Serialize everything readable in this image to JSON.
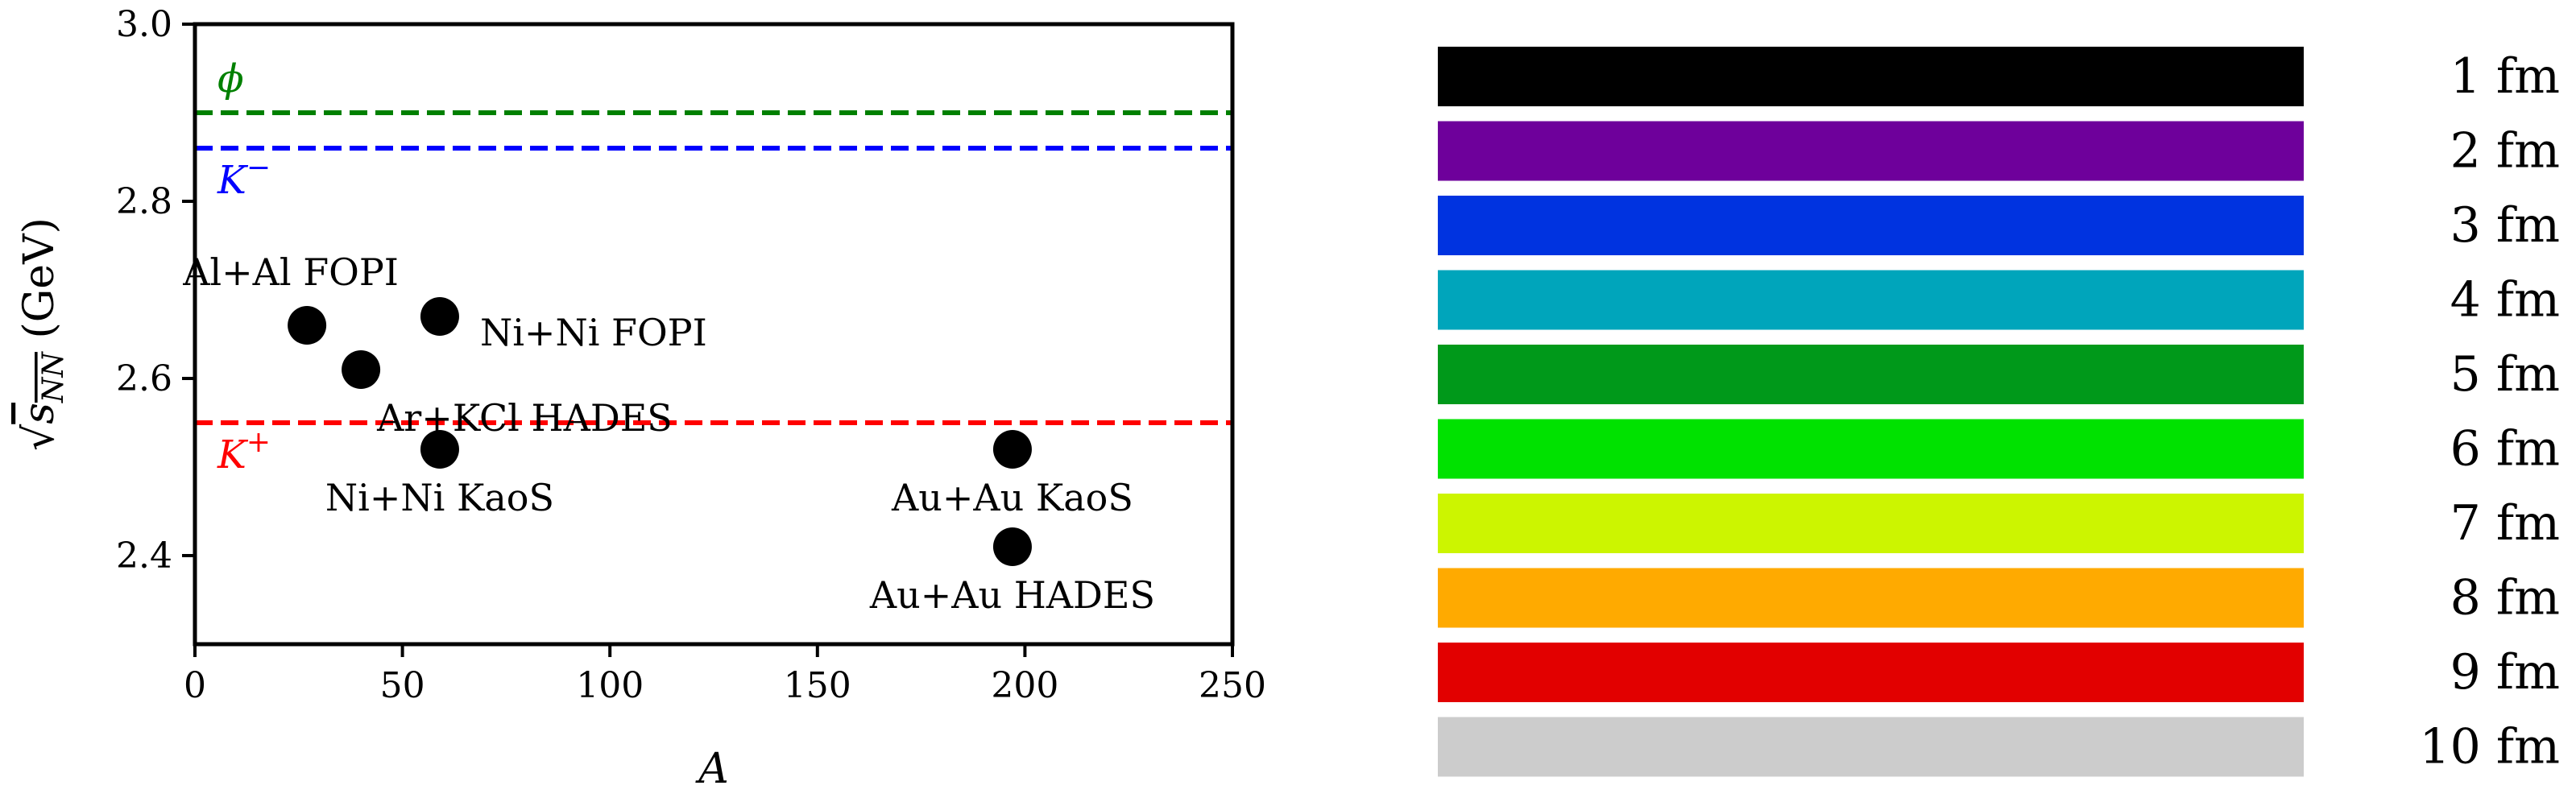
{
  "chart_data": {
    "type": "scatter",
    "xlabel": "A",
    "ylabel": {
      "base": "s",
      "sub": "NN",
      "unit": "(GeV)"
    },
    "xlim": [
      0,
      250
    ],
    "ylim": [
      2.3,
      3.0
    ],
    "xticks": [
      0,
      50,
      100,
      150,
      200,
      250
    ],
    "yticks": [
      2.4,
      2.6,
      2.8,
      3.0
    ],
    "xtick_labels": [
      "0",
      "50",
      "100",
      "150",
      "200",
      "250"
    ],
    "ytick_labels": [
      "2.4",
      "2.6",
      "2.8",
      "3.0"
    ],
    "grid": false,
    "points": [
      {
        "label": "Al+Al FOPI",
        "x": 27,
        "y": 2.66,
        "label_pos": "above-left"
      },
      {
        "label": "Ni+Ni FOPI",
        "x": 59,
        "y": 2.67,
        "label_pos": "right"
      },
      {
        "label": "Ar+KCl HADES",
        "x": 40,
        "y": 2.61,
        "label_pos": "below-right"
      },
      {
        "label": "Ni+Ni KaoS",
        "x": 59,
        "y": 2.52,
        "label_pos": "below"
      },
      {
        "label": "Au+Au KaoS",
        "x": 197,
        "y": 2.52,
        "label_pos": "below"
      },
      {
        "label": "Au+Au HADES",
        "x": 197,
        "y": 2.41,
        "label_pos": "below"
      }
    ],
    "reference_lines": [
      {
        "label": "ϕ",
        "y": 2.9,
        "color": "#008000",
        "label_pos": "above"
      },
      {
        "label": "K",
        "superscript": "−",
        "y": 2.86,
        "color": "#0000ff",
        "label_pos": "below"
      },
      {
        "label": "K",
        "superscript": "+",
        "y": 2.55,
        "color": "#ff0000",
        "label_pos": "below"
      }
    ]
  },
  "legend": {
    "items": [
      {
        "label": "1 fm",
        "color": "#000000"
      },
      {
        "label": "2 fm",
        "color": "#6e009b"
      },
      {
        "label": "3 fm",
        "color": "#0033e0"
      },
      {
        "label": "4 fm",
        "color": "#00a5bb"
      },
      {
        "label": "5 fm",
        "color": "#00991a"
      },
      {
        "label": "6 fm",
        "color": "#00e200"
      },
      {
        "label": "7 fm",
        "color": "#ccf500"
      },
      {
        "label": "8 fm",
        "color": "#ffaa00"
      },
      {
        "label": "9 fm",
        "color": "#e20000"
      },
      {
        "label": "10 fm",
        "color": "#cccccc"
      }
    ]
  }
}
